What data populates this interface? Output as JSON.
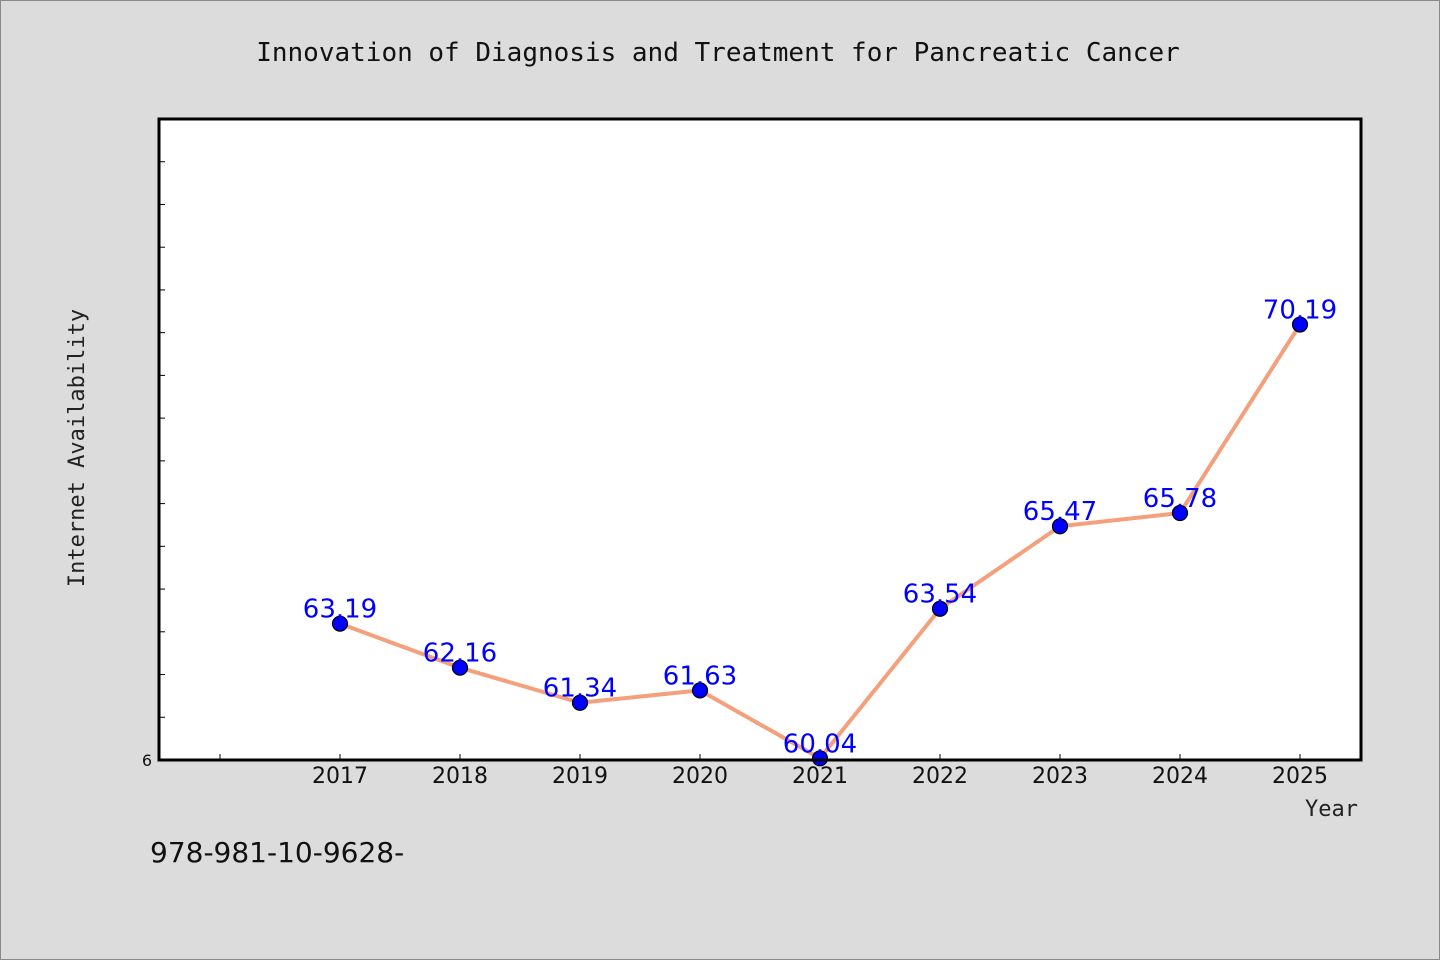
{
  "chart_data": {
    "type": "line",
    "title": "Innovation of Diagnosis and Treatment for Pancreatic Cancer",
    "xlabel": "Year",
    "ylabel": "Internet Availability",
    "categories": [
      "2017",
      "2018",
      "2019",
      "2020",
      "2021",
      "2022",
      "2023",
      "2024",
      "2025"
    ],
    "series": [
      {
        "values": [
          63.19,
          62.16,
          61.34,
          61.63,
          60.04,
          63.54,
          65.47,
          65.78,
          70.19
        ]
      }
    ],
    "data_labels": [
      "63.19",
      "62.16",
      "61.34",
      "61.63",
      "60.04",
      "63.54",
      "65.47",
      "65.78",
      "70.19"
    ],
    "y_visible_tick_label": "6",
    "ylim": [
      60,
      75
    ],
    "grid": false,
    "colors": {
      "line": "#f4a07c",
      "marker": "#0000ff",
      "label": "#0000ff"
    }
  },
  "footer": {
    "text": "978-981-10-9628-"
  }
}
